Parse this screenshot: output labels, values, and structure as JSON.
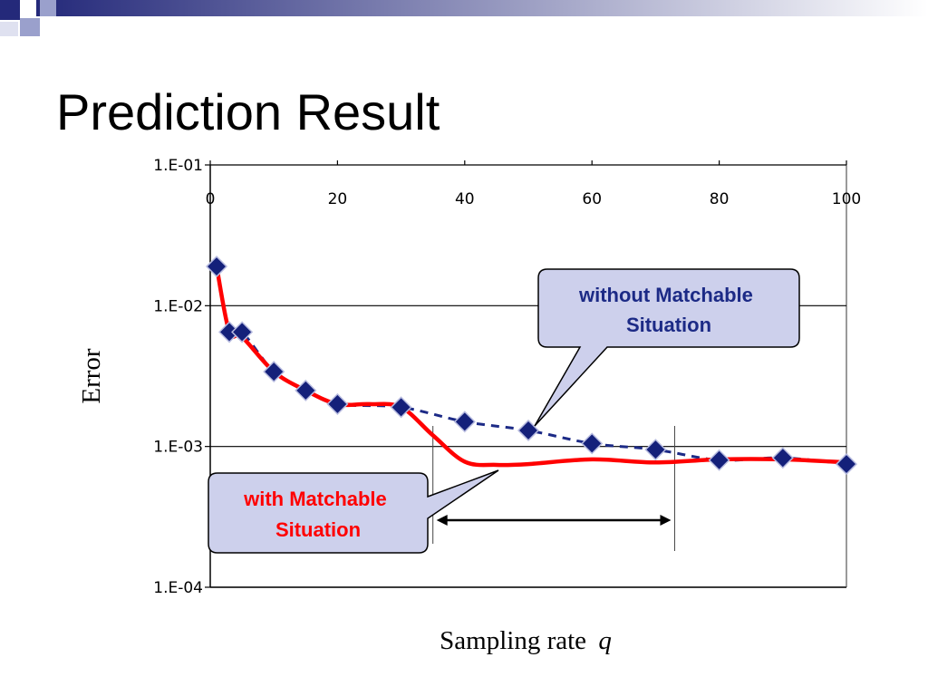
{
  "slide": {
    "title": "Prediction Result"
  },
  "colors": {
    "accent": "#24297a",
    "with_line": "#ff0000",
    "without_line": "#1c2a86",
    "marker": "#14207a",
    "callout_fill": "#cdd0ec"
  },
  "chart_data": {
    "type": "line",
    "xlabel": "Sampling rate",
    "xlabel_var": "q",
    "ylabel": "Error",
    "x_ticks": [
      "0",
      "20",
      "40",
      "60",
      "80",
      "100"
    ],
    "y_ticks": [
      "1.E-01",
      "1.E-02",
      "1.E-03",
      "1.E-04"
    ],
    "xlim": [
      0,
      100
    ],
    "ylim": [
      0.0001,
      0.1
    ],
    "y_scale": "log",
    "x_axis_position": "top",
    "grid": "horizontal",
    "series": [
      {
        "name": "without Matchable Situation",
        "style": "dashed",
        "markers": true,
        "x": [
          1,
          3,
          5,
          10,
          15,
          20,
          30,
          40,
          50,
          60,
          70,
          80,
          90,
          100
        ],
        "y": [
          0.019,
          0.0065,
          0.0065,
          0.0034,
          0.0025,
          0.002,
          0.0019,
          0.0015,
          0.0013,
          0.00105,
          0.00095,
          0.0008,
          0.00083,
          0.00075
        ]
      },
      {
        "name": "with Matchable Situation",
        "style": "solid",
        "markers": false,
        "x": [
          1,
          3,
          5,
          10,
          15,
          20,
          25,
          30,
          35,
          40,
          45,
          50,
          60,
          70,
          80,
          90,
          100
        ],
        "y": [
          0.019,
          0.0065,
          0.006,
          0.0034,
          0.0025,
          0.002,
          0.002,
          0.0019,
          0.0012,
          0.00078,
          0.00074,
          0.00075,
          0.00081,
          0.00077,
          0.00081,
          0.00081,
          0.00077
        ]
      }
    ],
    "annotations": {
      "range_arrow": {
        "x_start": 35,
        "x_end": 73,
        "label": ""
      },
      "callout_without": "without Matchable Situation",
      "callout_with": "with Matchable Situation"
    }
  }
}
